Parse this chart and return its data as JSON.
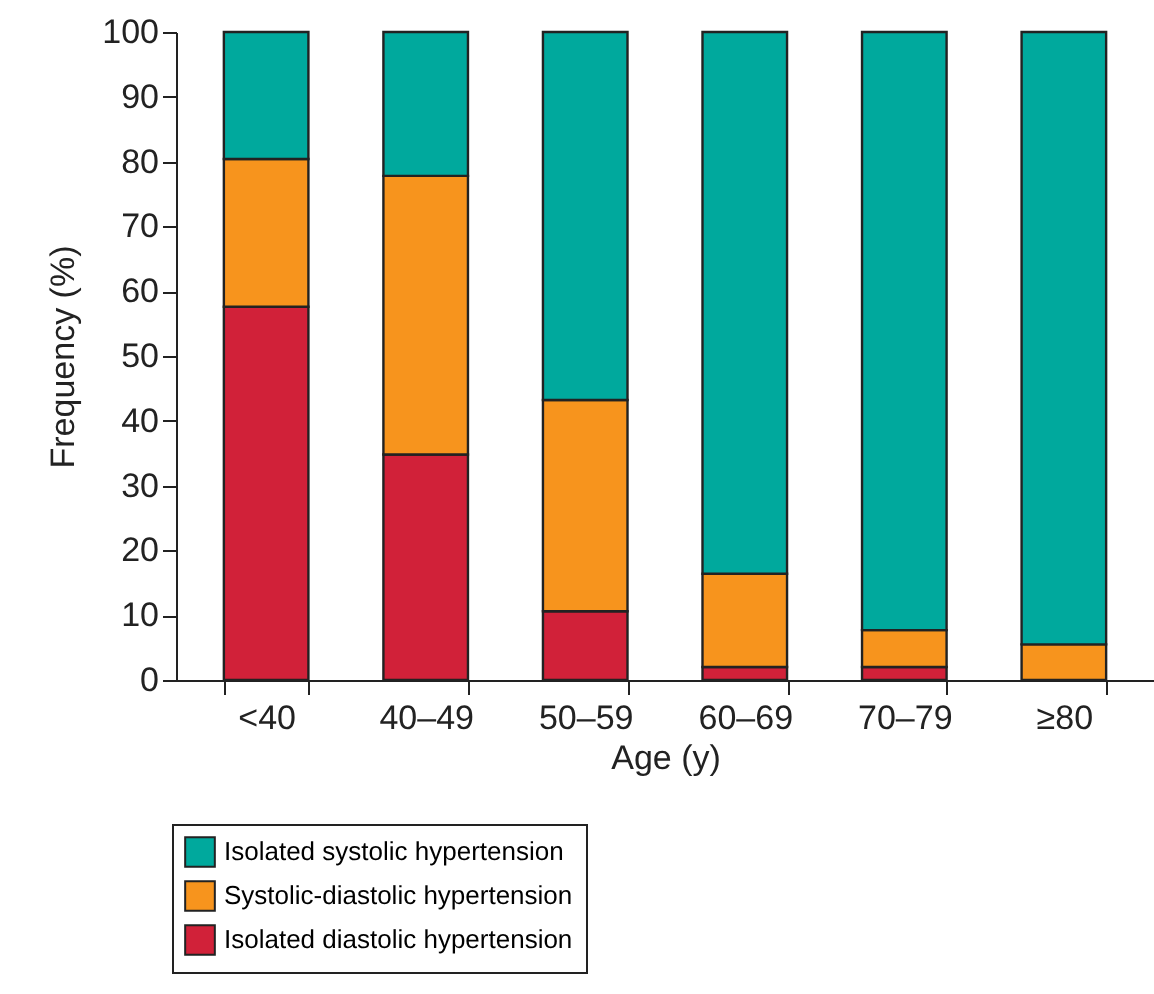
{
  "chart_data": {
    "type": "bar",
    "stacked": true,
    "xlabel": "Age (y)",
    "ylabel": "Frequency (%)",
    "categories": [
      "<40",
      "40–49",
      "50–59",
      "60–69",
      "70–79",
      "≥80"
    ],
    "series": [
      {
        "name": "Isolated diastolic hypertension",
        "color": "#d12139",
        "values": [
          57.6,
          34.8,
          10.6,
          2,
          2,
          0
        ]
      },
      {
        "name": "Systolic-diastolic hypertension",
        "color": "#f7941d",
        "values": [
          22.8,
          43,
          32.6,
          14.4,
          5.7,
          5.5
        ]
      },
      {
        "name": "Isolated systolic hypertension",
        "color": "#00a99d",
        "values": [
          19.6,
          22.2,
          56.8,
          83.6,
          92.3,
          94.5
        ]
      }
    ],
    "ylim": [
      0,
      100
    ],
    "yticks": [
      0,
      10,
      20,
      30,
      40,
      50,
      60,
      70,
      80,
      90,
      100
    ],
    "grid": false,
    "legend": "bottom left"
  }
}
